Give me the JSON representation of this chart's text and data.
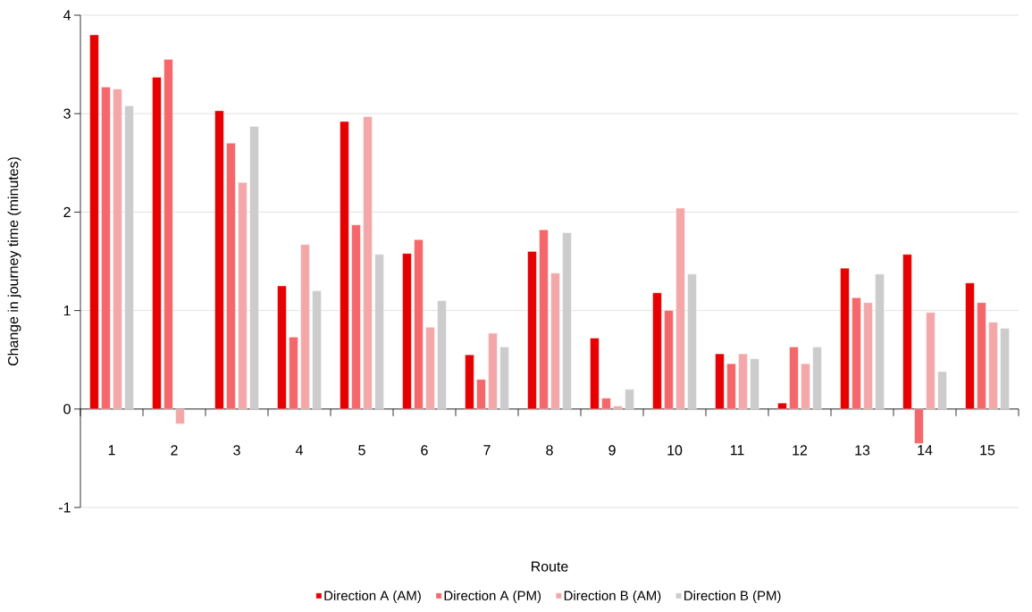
{
  "chart_data": {
    "type": "bar",
    "xlabel": "Route",
    "ylabel": "Change in journey time (minutes)",
    "categories": [
      "1",
      "2",
      "3",
      "4",
      "5",
      "6",
      "7",
      "8",
      "9",
      "10",
      "11",
      "12",
      "13",
      "14",
      "15"
    ],
    "series": [
      {
        "name": "Direction A (AM)",
        "color": "#e60000",
        "values": [
          3.8,
          3.37,
          3.03,
          1.25,
          2.92,
          1.58,
          0.55,
          1.6,
          0.72,
          1.18,
          0.56,
          0.06,
          1.43,
          1.57,
          1.28
        ]
      },
      {
        "name": "Direction A (PM)",
        "color": "#f4676a",
        "values": [
          3.27,
          3.55,
          2.7,
          0.73,
          1.87,
          1.72,
          0.3,
          1.82,
          0.11,
          1.0,
          0.46,
          0.63,
          1.13,
          -0.35,
          1.08
        ]
      },
      {
        "name": "Direction B (AM)",
        "color": "#f4a7a8",
        "values": [
          3.25,
          -0.15,
          2.3,
          1.67,
          2.97,
          0.83,
          0.77,
          1.38,
          0.03,
          2.04,
          0.56,
          0.46,
          1.08,
          0.98,
          0.88
        ]
      },
      {
        "name": "Direction B (PM)",
        "color": "#cccccc",
        "values": [
          3.08,
          null,
          2.87,
          1.2,
          1.57,
          1.1,
          0.63,
          1.79,
          0.2,
          1.37,
          0.51,
          0.63,
          1.37,
          0.38,
          0.82
        ]
      }
    ],
    "ylim": [
      -1,
      4
    ],
    "yticks": [
      -1,
      0,
      1,
      2,
      3,
      4
    ],
    "grid": "y",
    "legend": "bottom"
  }
}
